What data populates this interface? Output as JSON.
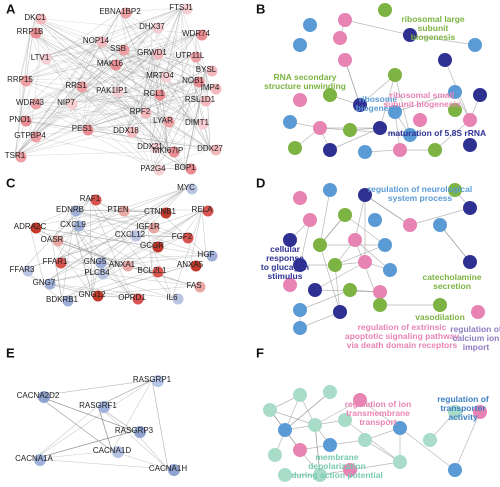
{
  "panels": [
    {
      "label": "A",
      "nodes": [
        "DKC1",
        "EBNA1BP2",
        "FTSJ1",
        "RRP1B",
        "NOP14",
        "SSB",
        "DHX37",
        "WDR74",
        "GRWD1",
        "UTP11L",
        "LTV1",
        "MAK16",
        "BYSL",
        "RRP15",
        "MRTO4",
        "NOB1",
        "IMP4",
        "RRS1",
        "PAK1IP1",
        "RCL1",
        "RSL1D1",
        "WDR43",
        "NIP7",
        "PNO1",
        "RPF2",
        "LYAR",
        "DIMT1",
        "PES1",
        "DDX18",
        "GTPBP4",
        "DDX21",
        "MKI67IP",
        "DDX27",
        "TSR1",
        "PA2G4",
        "BOP1"
      ]
    },
    {
      "label": "B",
      "terms": [
        {
          "lines": [
            "ribosomal large",
            "subunit",
            "biogenesis"
          ]
        },
        {
          "lines": [
            "ribosome",
            "biogenesis"
          ]
        },
        {
          "lines": [
            "ribosomal small",
            "subunit biogenesis"
          ]
        },
        {
          "lines": [
            "RNA secondary",
            "structure unwinding"
          ]
        },
        {
          "lines": [
            "maturation of 5.8S rRNA"
          ]
        }
      ]
    },
    {
      "label": "C",
      "nodes": [
        "RAF1",
        "EDNRB",
        "PTEN",
        "CTNNB1",
        "MYC",
        "RELA",
        "CXCL9",
        "IGF1R",
        "ADRA2C",
        "CXCL12",
        "FGF2",
        "HGF",
        "OASR",
        "GCGR",
        "FFAR3",
        "FFAR1",
        "GNG5",
        "ANXA1",
        "ANXA5",
        "PLCB4",
        "BCL2L1",
        "GNG7",
        "FAS",
        "GNG12",
        "IL6",
        "OPRD1",
        "BDKRB1"
      ]
    },
    {
      "label": "D",
      "terms": [
        {
          "lines": [
            "regulation of neurological",
            "system process"
          ]
        },
        {
          "lines": [
            "cellular",
            "response",
            "to glucagon",
            "stimulus"
          ]
        },
        {
          "lines": [
            "catecholamine",
            "secretion"
          ]
        },
        {
          "lines": [
            "vasodilation"
          ]
        },
        {
          "lines": [
            "regulation of extrinsic",
            "apoptotic  signaling pathway",
            "via death domain receptors"
          ]
        },
        {
          "lines": [
            "regulation of",
            "calcium ion",
            "import"
          ]
        }
      ]
    },
    {
      "label": "E",
      "nodes": [
        "CACNA2D2",
        "RASGRP1",
        "RASGRF1",
        "RASGRP3",
        "CACNA1D",
        "CACNA1A",
        "CACNA1H"
      ]
    },
    {
      "label": "F",
      "terms": [
        {
          "lines": [
            "regulation of ion",
            "transmembrane",
            "transport"
          ]
        },
        {
          "lines": [
            "membrane",
            "depolarization",
            "during action potential"
          ]
        },
        {
          "lines": [
            "regulation of",
            "transporter",
            "activity"
          ]
        }
      ]
    }
  ]
}
